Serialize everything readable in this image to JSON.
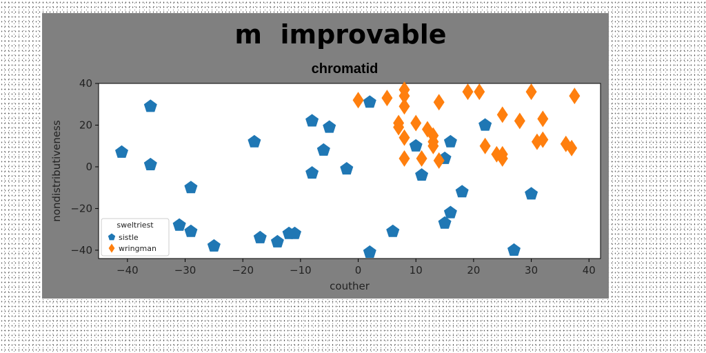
{
  "colors": {
    "figure_bg": "#808080",
    "plot_bg": "#ffffff",
    "sistle": "#1f77b4",
    "wringman": "#ff7f0e"
  },
  "chart_data": {
    "type": "scatter",
    "title": "m  improvable",
    "subtitle": "chromatid",
    "xlabel": "couther",
    "ylabel": "nondistributiveness",
    "xlim": [
      -45,
      42
    ],
    "ylim": [
      -44,
      40
    ],
    "xticks": [
      -40,
      -30,
      -20,
      -10,
      0,
      10,
      20,
      30,
      40
    ],
    "yticks": [
      -40,
      -20,
      0,
      20,
      40
    ],
    "grid": false,
    "legend": {
      "title": "sweltriest",
      "placement": "lower-left"
    },
    "series": [
      {
        "name": "sistle",
        "marker": "pentagon",
        "color": "#1f77b4",
        "points": [
          [
            -41,
            7
          ],
          [
            -36,
            29
          ],
          [
            -36,
            1
          ],
          [
            -29,
            -10
          ],
          [
            -31,
            -28
          ],
          [
            -29,
            -31
          ],
          [
            -25,
            -38
          ],
          [
            -18,
            12
          ],
          [
            -17,
            -34
          ],
          [
            -14,
            -36
          ],
          [
            -12,
            -32
          ],
          [
            -11,
            -32
          ],
          [
            -8,
            22
          ],
          [
            -8,
            -3
          ],
          [
            -6,
            8
          ],
          [
            -5,
            19
          ],
          [
            -2,
            -1
          ],
          [
            2,
            31
          ],
          [
            2,
            -41
          ],
          [
            6,
            -31
          ],
          [
            10,
            10
          ],
          [
            11,
            -4
          ],
          [
            15,
            4
          ],
          [
            15,
            -27
          ],
          [
            16,
            12
          ],
          [
            16,
            -22
          ],
          [
            18,
            -12
          ],
          [
            22,
            20
          ],
          [
            27,
            -40
          ],
          [
            30,
            -13
          ]
        ]
      },
      {
        "name": "wringman",
        "marker": "diamond",
        "color": "#ff7f0e",
        "points": [
          [
            0,
            32
          ],
          [
            5,
            33
          ],
          [
            7,
            21
          ],
          [
            7,
            19
          ],
          [
            8,
            37
          ],
          [
            8,
            34
          ],
          [
            8,
            29
          ],
          [
            8,
            14
          ],
          [
            8,
            4
          ],
          [
            10,
            21
          ],
          [
            11,
            4
          ],
          [
            12,
            18
          ],
          [
            13,
            15
          ],
          [
            13,
            12
          ],
          [
            13,
            10
          ],
          [
            14,
            31
          ],
          [
            14,
            3
          ],
          [
            19,
            36
          ],
          [
            21,
            36
          ],
          [
            22,
            10
          ],
          [
            24,
            6
          ],
          [
            25,
            25
          ],
          [
            25,
            6
          ],
          [
            25,
            4
          ],
          [
            28,
            22
          ],
          [
            30,
            36
          ],
          [
            31,
            12
          ],
          [
            32,
            23
          ],
          [
            32,
            13
          ],
          [
            36,
            11
          ],
          [
            37,
            9
          ],
          [
            37.5,
            34
          ]
        ]
      }
    ]
  }
}
